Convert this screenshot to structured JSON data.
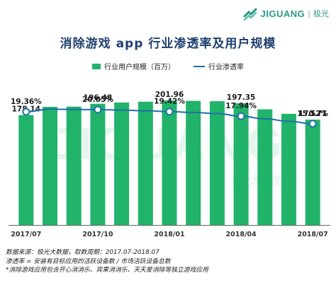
{
  "logo": {
    "text": "JIGUANG",
    "separator": "|",
    "cn": "极光"
  },
  "watermark": {
    "text": "JIGUANG",
    "cn": "极 光 大 数 据"
  },
  "chart_data": {
    "type": "bar",
    "title": "消除游戏 app 行业渗透率及用户规模",
    "categories": [
      "2017/07",
      "2017/08",
      "2017/09",
      "2017/10",
      "2017/11",
      "2017/12",
      "2018/01",
      "2018/02",
      "2018/03",
      "2018/04",
      "2018/05",
      "2018/06",
      "2018/07"
    ],
    "x_tick_labels": [
      {
        "index": 0,
        "label": "2017/07"
      },
      {
        "index": 3,
        "label": "2017/10"
      },
      {
        "index": 6,
        "label": "2018/01"
      },
      {
        "index": 9,
        "label": "2018/04"
      },
      {
        "index": 12,
        "label": "2018/07"
      }
    ],
    "series": [
      {
        "name": "行业用户规模（百万）",
        "kind": "bar",
        "color": "#21b36a",
        "values": [
          178.14,
          191.5,
          191.8,
          196.48,
          198.5,
          199.8,
          201.96,
          201.2,
          200.6,
          197.35,
          187.5,
          180.2,
          170.71
        ]
      },
      {
        "name": "行业渗透率",
        "kind": "line",
        "unit": "%",
        "color": "#1f6fa8",
        "values": [
          19.36,
          20.2,
          20.1,
          20.05,
          19.9,
          19.7,
          19.42,
          19.15,
          18.8,
          17.94,
          17.1,
          16.3,
          15.52
        ]
      }
    ],
    "bar_labels": [
      {
        "index": 0,
        "text": "178.14"
      },
      {
        "index": 3,
        "text": "196.48"
      },
      {
        "index": 6,
        "text": "201.96"
      },
      {
        "index": 9,
        "text": "197.35"
      },
      {
        "index": 12,
        "text": "170.71"
      }
    ],
    "line_labels": [
      {
        "index": 0,
        "text": "19.36%"
      },
      {
        "index": 3,
        "text": "20.05%"
      },
      {
        "index": 6,
        "text": "19.42%"
      },
      {
        "index": 9,
        "text": "17.94%"
      },
      {
        "index": 12,
        "text": "15.52%"
      }
    ],
    "bar_ylim": [
      0,
      250
    ],
    "line_ylim": [
      0,
      24
    ],
    "legend_position": "top-center",
    "grid": false
  },
  "notes": [
    "数据来源：极光大数据，取数周期：2017.07-2018.07",
    "渗透率 = 安装有目标应用的活跃设备数 / 市场活跃设备总数",
    "*消除游戏应用包含开心消消乐、宾果消消乐、天天爱消除等独立游戏应用"
  ]
}
